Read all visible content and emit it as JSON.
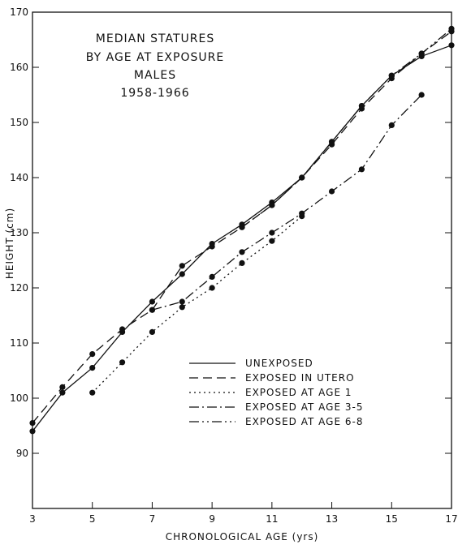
{
  "chart_data": {
    "type": "line",
    "title_lines": [
      "MEDIAN STATURES",
      "BY AGE AT EXPOSURE",
      "MALES",
      "1958-1966"
    ],
    "xlabel": "CHRONOLOGICAL AGE (yrs)",
    "ylabel": "HEIGHT (cm)",
    "xlim": [
      3,
      17
    ],
    "ylim": [
      80,
      170
    ],
    "x_ticks": [
      3,
      5,
      7,
      9,
      11,
      13,
      15,
      17
    ],
    "y_ticks": [
      90,
      100,
      110,
      120,
      130,
      140,
      150,
      160,
      170
    ],
    "grid": false,
    "legend_position": "lower-right",
    "series": [
      {
        "name": "UNEXPOSED",
        "dash": "solid",
        "x": [
          3,
          4,
          5,
          6,
          7,
          8,
          9,
          10,
          11,
          12,
          13,
          14,
          15,
          16,
          17
        ],
        "y": [
          94,
          101,
          105.5,
          112,
          117.5,
          122.5,
          128,
          131.5,
          135.5,
          140,
          146.5,
          153,
          158.5,
          162,
          164
        ]
      },
      {
        "name": "EXPOSED IN UTERO",
        "dash": "dash",
        "x": [
          3,
          4,
          5,
          6,
          7,
          8,
          9,
          10,
          11,
          12,
          13,
          14,
          15,
          16,
          17
        ],
        "y": [
          95.5,
          102,
          108,
          112.5,
          116,
          124,
          127.5,
          131,
          135,
          140,
          146,
          152.5,
          158,
          162.5,
          166.5
        ]
      },
      {
        "name": "EXPOSED AT AGE 1",
        "dash": "dot",
        "x": [
          5,
          6,
          7,
          8,
          9,
          10,
          11,
          12
        ],
        "y": [
          101,
          106.5,
          112,
          116.5,
          120,
          124.5,
          128.5,
          133
        ]
      },
      {
        "name": "EXPOSED AT AGE 3-5",
        "dash": "dashdot",
        "x": [
          7,
          8,
          9,
          10,
          11,
          12,
          13,
          14,
          15,
          16
        ],
        "y": [
          116,
          117.5,
          122,
          126.5,
          130,
          133.5,
          137.5,
          141.5,
          149.5,
          155
        ]
      },
      {
        "name": "EXPOSED AT AGE 6-8",
        "dash": "dashdotdot",
        "x": [
          10,
          11,
          12,
          13,
          14,
          15,
          16,
          17
        ],
        "y": [
          131,
          135,
          140,
          146.5,
          153,
          158.5,
          162.5,
          167
        ]
      }
    ]
  }
}
